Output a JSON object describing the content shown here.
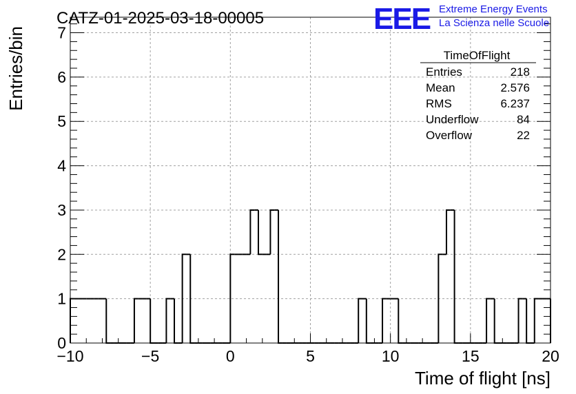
{
  "header": {
    "run_title": "CATZ-01-2025-03-18-00005",
    "logo_text": "EEE",
    "logo_line1": "Extreme Energy Events",
    "logo_line2": "La Scienza nelle Scuole",
    "logo_color": "#1a1ae6"
  },
  "stats_box": {
    "title": "TimeOfFlight",
    "rows": [
      {
        "label": "Entries",
        "value": "218"
      },
      {
        "label": "Mean",
        "value": "2.576"
      },
      {
        "label": "RMS",
        "value": "6.237"
      },
      {
        "label": "Underflow",
        "value": "84"
      },
      {
        "label": "Overflow",
        "value": "22"
      }
    ]
  },
  "chart_data": {
    "type": "bar",
    "title": "CATZ-01-2025-03-18-00005",
    "xlabel": "Time of flight [ns]",
    "ylabel": "Entries/bin",
    "xlim": [
      -10,
      20
    ],
    "ylim": [
      0,
      7.35
    ],
    "grid": true,
    "bin_width": 0.25,
    "xticks": [
      -10,
      -5,
      0,
      5,
      10,
      15,
      20
    ],
    "xtick_labels": [
      "−10",
      "−5",
      "0",
      "5",
      "10",
      "15",
      "20"
    ],
    "yticks": [
      0,
      1,
      2,
      3,
      4,
      5,
      6,
      7
    ],
    "ytick_labels": [
      "0",
      "1",
      "2",
      "3",
      "4",
      "5",
      "6",
      "7"
    ],
    "bin_lo": [
      -10,
      -9.75,
      -9.5,
      -9.25,
      -9,
      -8.75,
      -8.5,
      -8.25,
      -8,
      -7.75,
      -7.5,
      -7.25,
      -7,
      -6.75,
      -6.5,
      -6.25,
      -6,
      -5.75,
      -5.5,
      -5.25,
      -5,
      -4.75,
      -4.5,
      -4.25,
      -4,
      -3.75,
      -3.5,
      -3.25,
      -3,
      -2.75,
      -2.5,
      -2.25,
      -2,
      -1.75,
      -1.5,
      -1.25,
      -1,
      -0.75,
      -0.5,
      -0.25,
      0,
      0.25,
      0.5,
      0.75,
      1,
      1.25,
      1.5,
      1.75,
      2,
      2.25,
      2.5,
      2.75,
      3,
      3.25,
      3.5,
      3.75,
      4,
      4.25,
      4.5,
      4.75,
      5,
      5.25,
      5.5,
      5.75,
      6,
      6.25,
      6.5,
      6.75,
      7,
      7.25,
      7.5,
      7.75,
      8,
      8.25,
      8.5,
      8.75,
      9,
      9.25,
      9.5,
      9.75,
      10,
      10.25,
      10.5,
      10.75,
      11,
      11.25,
      11.5,
      11.75,
      12,
      12.25,
      12.5,
      12.75,
      13,
      13.25,
      13.5,
      13.75,
      14,
      14.25,
      14.5,
      14.75,
      15,
      15.25,
      15.5,
      15.75,
      16,
      16.25,
      16.5,
      16.75,
      17,
      17.25,
      17.5,
      17.75,
      18,
      18.25,
      18.5,
      18.75,
      19,
      19.25,
      19.5,
      19.75
    ],
    "values": [
      1,
      1,
      1,
      1,
      1,
      1,
      1,
      1,
      1,
      0,
      0,
      0,
      0,
      0,
      0,
      0,
      1,
      1,
      1,
      1,
      0,
      0,
      0,
      0,
      1,
      1,
      0,
      0,
      2,
      2,
      0,
      0,
      0,
      0,
      0,
      0,
      0,
      0,
      0,
      0,
      2,
      2,
      2,
      2,
      2,
      3,
      3,
      2,
      2,
      2,
      3,
      3,
      0,
      0,
      0,
      0,
      0,
      0,
      0,
      0,
      0,
      0,
      0,
      0,
      0,
      0,
      0,
      0,
      0,
      0,
      0,
      0,
      1,
      1,
      0,
      0,
      0,
      0,
      1,
      1,
      1,
      1,
      0,
      0,
      0,
      0,
      0,
      0,
      0,
      0,
      0,
      0,
      2,
      2,
      3,
      3,
      0,
      0,
      0,
      0,
      0,
      0,
      0,
      0,
      1,
      1,
      0,
      0,
      0,
      0,
      0,
      0,
      1,
      1,
      0,
      0,
      1,
      1,
      1,
      1
    ]
  }
}
